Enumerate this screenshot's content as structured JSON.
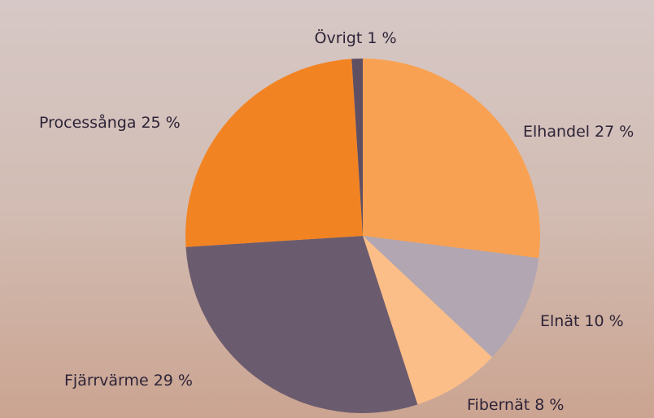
{
  "chart_data": {
    "type": "pie",
    "categories": [
      "Elhandel",
      "Elnät",
      "Fibernät",
      "Fjärrvärme",
      "Processånga",
      "Övrigt"
    ],
    "values": [
      27,
      10,
      8,
      29,
      25,
      1
    ],
    "value_labels": [
      "27 %",
      "10 %",
      "8 %",
      "29 %",
      "25 %",
      "1 %"
    ],
    "colors": [
      "#f9a152",
      "#b1a6b1",
      "#fbbe88",
      "#6b5b6e",
      "#f28322",
      "#5f4f63"
    ]
  }
}
